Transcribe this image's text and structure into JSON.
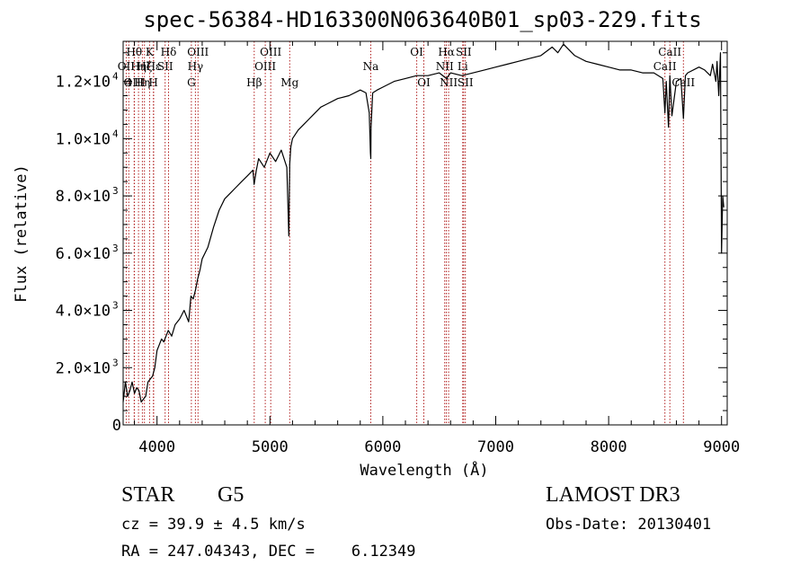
{
  "chart_data": {
    "type": "line",
    "title": "spec-56384-HD163300N063640B01_sp03-229.fits",
    "xlabel": "Wavelength (Å)",
    "ylabel": "Flux (relative)",
    "xlim": [
      3700,
      9050
    ],
    "ylim": [
      0,
      13400
    ],
    "x_ticks": [
      {
        "value": 4000,
        "label": "4000"
      },
      {
        "value": 5000,
        "label": "5000"
      },
      {
        "value": 6000,
        "label": "6000"
      },
      {
        "value": 7000,
        "label": "7000"
      },
      {
        "value": 8000,
        "label": "8000"
      },
      {
        "value": 9000,
        "label": "9000"
      }
    ],
    "y_ticks": [
      {
        "value": 0,
        "mantissa": "0",
        "exp": ""
      },
      {
        "value": 2000,
        "mantissa": "2.0×10",
        "exp": "3"
      },
      {
        "value": 4000,
        "mantissa": "4.0×10",
        "exp": "3"
      },
      {
        "value": 6000,
        "mantissa": "6.0×10",
        "exp": "3"
      },
      {
        "value": 8000,
        "mantissa": "8.0×10",
        "exp": "3"
      },
      {
        "value": 10000,
        "mantissa": "1.0×10",
        "exp": "4"
      },
      {
        "value": 12000,
        "mantissa": "1.2×10",
        "exp": "4"
      }
    ],
    "x_minor_step": 200,
    "y_minor_step": 500,
    "grid": false,
    "series": [
      {
        "color": "#000000",
        "x": [
          3700,
          3720,
          3740,
          3760,
          3780,
          3800,
          3820,
          3840,
          3860,
          3880,
          3900,
          3920,
          3940,
          3960,
          3980,
          4000,
          4020,
          4040,
          4060,
          4080,
          4100,
          4130,
          4160,
          4200,
          4240,
          4280,
          4300,
          4320,
          4340,
          4360,
          4380,
          4400,
          4450,
          4500,
          4550,
          4600,
          4650,
          4700,
          4750,
          4800,
          4850,
          4860,
          4880,
          4900,
          4950,
          5000,
          5050,
          5100,
          5150,
          5167,
          5175,
          5185,
          5200,
          5250,
          5300,
          5350,
          5400,
          5450,
          5500,
          5600,
          5700,
          5800,
          5850,
          5880,
          5890,
          5893,
          5896,
          5910,
          5950,
          6000,
          6100,
          6200,
          6300,
          6400,
          6500,
          6563,
          6600,
          6700,
          6800,
          6900,
          7000,
          7100,
          7200,
          7300,
          7400,
          7500,
          7550,
          7600,
          7650,
          7700,
          7750,
          7800,
          7900,
          8000,
          8100,
          8200,
          8300,
          8400,
          8480,
          8498,
          8510,
          8530,
          8542,
          8560,
          8600,
          8640,
          8662,
          8680,
          8700,
          8800,
          8850,
          8900,
          8920,
          8950,
          8960,
          8975,
          8990,
          9000,
          9010,
          9020
        ],
        "y": [
          800,
          1500,
          1000,
          1200,
          1500,
          1100,
          1300,
          1200,
          800,
          900,
          1000,
          1500,
          1600,
          1700,
          2000,
          2600,
          2800,
          3000,
          2900,
          3100,
          3300,
          3100,
          3500,
          3700,
          4000,
          3600,
          4500,
          4400,
          4700,
          5100,
          5400,
          5800,
          6200,
          6900,
          7500,
          7900,
          8100,
          8300,
          8500,
          8700,
          8900,
          8400,
          8900,
          9300,
          9000,
          9500,
          9200,
          9600,
          9000,
          6600,
          9100,
          9700,
          10000,
          10300,
          10500,
          10700,
          10900,
          11100,
          11200,
          11400,
          11500,
          11700,
          11600,
          10900,
          9500,
          9300,
          10400,
          11600,
          11700,
          11800,
          12000,
          12100,
          12200,
          12200,
          12300,
          12100,
          12300,
          12200,
          12300,
          12400,
          12500,
          12600,
          12700,
          12800,
          12900,
          13200,
          13000,
          13300,
          13100,
          12900,
          12800,
          12700,
          12600,
          12500,
          12400,
          12400,
          12300,
          12300,
          12100,
          10900,
          12000,
          10400,
          12200,
          10800,
          12000,
          12100,
          10700,
          12200,
          12300,
          12500,
          12400,
          12200,
          12600,
          12000,
          12700,
          11500,
          13000,
          6000,
          8000,
          7600
        ]
      }
    ],
    "annotations": [
      {
        "wavelength": 3727,
        "label": "OII",
        "row": 2
      },
      {
        "wavelength": 3750,
        "label": "4",
        "row": 3
      },
      {
        "wavelength": 3800,
        "label": "OIII",
        "row": 3
      },
      {
        "wavelength": 3798,
        "label": "Hθ",
        "row": 1
      },
      {
        "wavelength": 3836,
        "label": "Hη",
        "row": 2
      },
      {
        "wavelength": 3870,
        "label": "Hη",
        "row": 3
      },
      {
        "wavelength": 3889,
        "label": "Hζ",
        "row": 2
      },
      {
        "wavelength": 3934,
        "label": "K",
        "row": 1
      },
      {
        "wavelength": 3968,
        "label": "H",
        "row": 3
      },
      {
        "wavelength": 3970,
        "label": "Hε",
        "row": 2
      },
      {
        "wavelength": 4072,
        "label": "SII",
        "row": 2
      },
      {
        "wavelength": 4102,
        "label": "Hδ",
        "row": 1
      },
      {
        "wavelength": 4304,
        "label": "G",
        "row": 3
      },
      {
        "wavelength": 4340,
        "label": "Hγ",
        "row": 2
      },
      {
        "wavelength": 4363,
        "label": "OIII",
        "row": 1
      },
      {
        "wavelength": 4861,
        "label": "Hβ",
        "row": 3
      },
      {
        "wavelength": 4959,
        "label": "OIII",
        "row": 2
      },
      {
        "wavelength": 5007,
        "label": "OIII",
        "row": 1
      },
      {
        "wavelength": 5175,
        "label": "Mg",
        "row": 3
      },
      {
        "wavelength": 5893,
        "label": "Na",
        "row": 2
      },
      {
        "wavelength": 6300,
        "label": "OI",
        "row": 1
      },
      {
        "wavelength": 6363,
        "label": "OI",
        "row": 3
      },
      {
        "wavelength": 6548,
        "label": "NII",
        "row": 2
      },
      {
        "wavelength": 6563,
        "label": "Hα",
        "row": 1
      },
      {
        "wavelength": 6583,
        "label": "NII",
        "row": 3
      },
      {
        "wavelength": 6708,
        "label": "Li",
        "row": 2
      },
      {
        "wavelength": 6716,
        "label": "SII",
        "row": 1
      },
      {
        "wavelength": 6731,
        "label": "SII",
        "row": 3
      },
      {
        "wavelength": 8498,
        "label": "CaII",
        "row": 2
      },
      {
        "wavelength": 8542,
        "label": "CaII",
        "row": 1
      },
      {
        "wavelength": 8662,
        "label": "CaII",
        "row": 3
      }
    ]
  },
  "info": {
    "object_class": "STAR",
    "subclass": "G5",
    "survey": "LAMOST DR3",
    "redshift": "cz = 39.9 ± 4.5 km/s",
    "obs_date": "Obs-Date: 20130401",
    "coords": "RA = 247.04343, DEC =    6.12349"
  },
  "colors": {
    "line_marker": "#b22222",
    "spectrum": "#000000"
  }
}
